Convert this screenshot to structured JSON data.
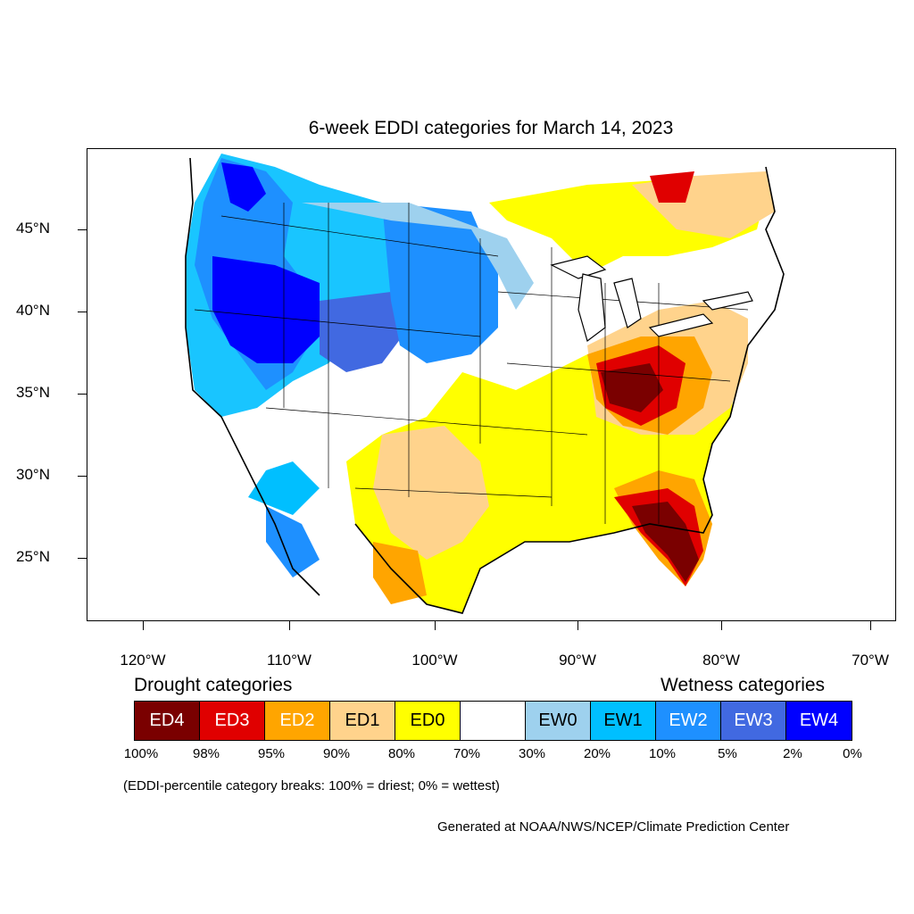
{
  "title": "6-week EDDI categories for March 14, 2023",
  "lat_labels": [
    "45°N",
    "40°N",
    "35°N",
    "30°N",
    "25°N"
  ],
  "lon_labels": [
    "120°W",
    "110°W",
    "100°W",
    "90°W",
    "80°W",
    "70°W"
  ],
  "legend": {
    "drought_heading": "Drought categories",
    "wetness_heading": "Wetness categories",
    "categories": [
      {
        "label": "ED4",
        "color": "#7a0000"
      },
      {
        "label": "ED3",
        "color": "#e00000"
      },
      {
        "label": "ED2",
        "color": "#ffa500"
      },
      {
        "label": "ED1",
        "color": "#ffd38c"
      },
      {
        "label": "ED0",
        "color": "#ffff00"
      },
      {
        "label": "",
        "color": "#ffffff"
      },
      {
        "label": "EW0",
        "color": "#9ed1ee"
      },
      {
        "label": "EW1",
        "color": "#00bfff"
      },
      {
        "label": "EW2",
        "color": "#1e90ff"
      },
      {
        "label": "EW3",
        "color": "#4169e1"
      },
      {
        "label": "EW4",
        "color": "#0000ff"
      }
    ],
    "breaks": [
      "100%",
      "98%",
      "95%",
      "90%",
      "80%",
      "70%",
      "30%",
      "20%",
      "10%",
      "5%",
      "2%",
      "0%"
    ]
  },
  "note": "(EDDI-percentile category breaks: 100% = driest; 0% = wettest)",
  "credit": "Generated at NOAA/NWS/NCEP/Climate Prediction Center"
}
